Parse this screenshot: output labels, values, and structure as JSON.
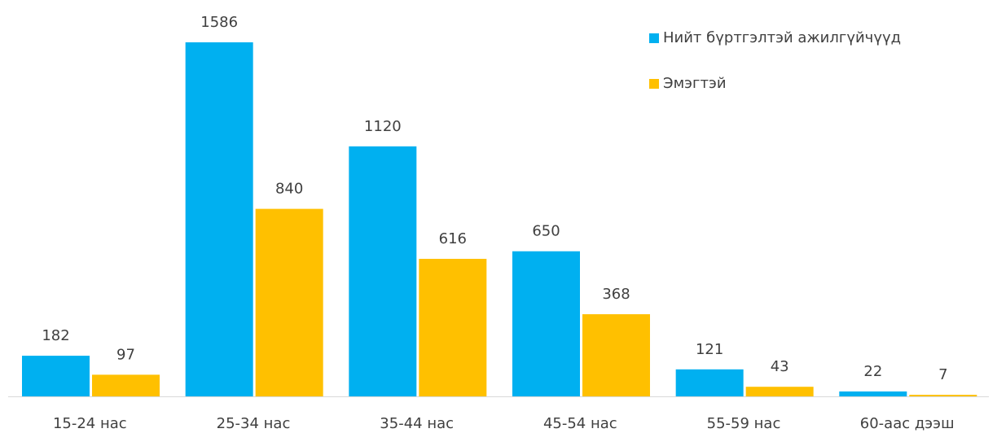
{
  "chart_data": {
    "type": "bar",
    "categories": [
      "15-24 нас",
      "25-34 нас",
      "35-44 нас",
      "45-54 нас",
      "55-59 нас",
      "60-аас дээш"
    ],
    "series": [
      {
        "name": "Нийт бүртгэлтэй ажилгүйчүүд",
        "color": "#00b0f0",
        "values": [
          182,
          1586,
          1120,
          650,
          121,
          22
        ]
      },
      {
        "name": "Эмэгтэй",
        "color": "#ffc000",
        "values": [
          97,
          840,
          616,
          368,
          43,
          7
        ]
      }
    ],
    "legend": "top-right"
  }
}
